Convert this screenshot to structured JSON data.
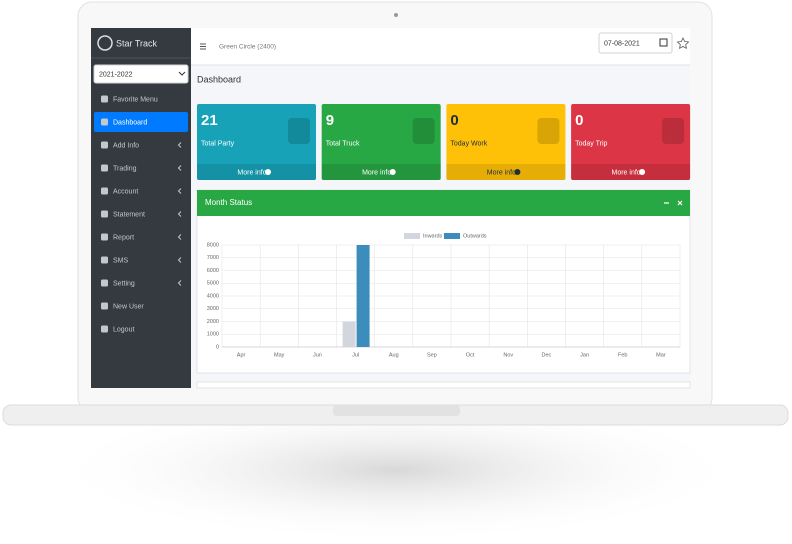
{
  "sidebar": {
    "brand": "Star Track",
    "year": "2021-2022",
    "menu": [
      "Favorite Menu",
      "Dashboard",
      "Add Info",
      "Trading",
      "Account",
      "Statement",
      "Report",
      "SMS",
      "Setting",
      "New User",
      "Logout"
    ]
  },
  "header": {
    "company": "Green Circle (2400)",
    "date": "07-08-2021"
  },
  "page_title": "Dashboard",
  "info_boxes": [
    {
      "value": 21,
      "label": "Total Party",
      "link": "More info",
      "color": "#17a2b8"
    },
    {
      "value": 9,
      "label": "Total Truck",
      "link": "More info",
      "color": "#28a745"
    },
    {
      "value": 0,
      "label": "Today Work",
      "link": "More info",
      "color": "#ffc107"
    },
    {
      "value": 0,
      "label": "Today Trip",
      "link": "More info",
      "color": "#dc3545"
    }
  ],
  "month_status": {
    "title": "Month Status",
    "chart": {
      "type": "bar",
      "categories": [
        "Apr",
        "May",
        "Jun",
        "Jul",
        "Aug",
        "Sep",
        "Oct",
        "Nov",
        "Dec",
        "Jan",
        "Feb",
        "Mar"
      ],
      "series": [
        {
          "name": "Inwards",
          "color": "#d2d6de",
          "values": [
            0,
            0,
            0,
            2000,
            0,
            0,
            0,
            0,
            0,
            0,
            0,
            0
          ]
        },
        {
          "name": "Outwards",
          "color": "#3c8dbc",
          "values": [
            0,
            0,
            0,
            8000,
            0,
            0,
            0,
            0,
            0,
            0,
            0,
            0
          ]
        }
      ],
      "ylim": [
        0,
        8000
      ],
      "yticks": [
        0,
        1000,
        2000,
        3000,
        4000,
        5000,
        6000,
        7000,
        8000
      ],
      "grid": true
    }
  }
}
